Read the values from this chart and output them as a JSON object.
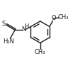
{
  "bg_color": "#ffffff",
  "line_color": "#1a1a1a",
  "line_width": 1.0,
  "font_size_label": 5.5,
  "figure_width": 0.96,
  "figure_height": 0.93,
  "dpi": 100,
  "xlim": [
    0,
    96
  ],
  "ylim": [
    0,
    93
  ]
}
